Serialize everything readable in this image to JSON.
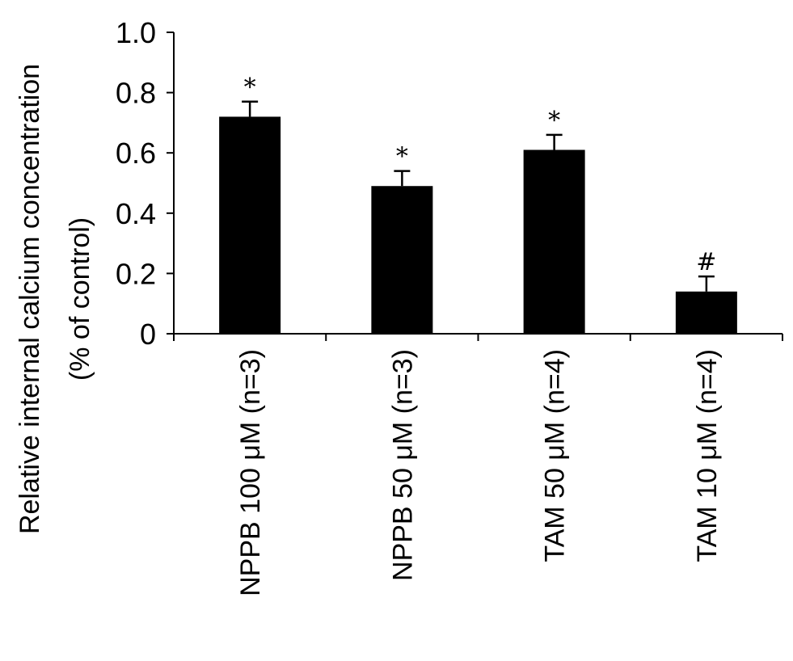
{
  "chart_data": {
    "type": "bar",
    "title": "",
    "ylabel_lines": [
      "Relative internal calcium concentration",
      "(% of control)"
    ],
    "xlabel": "",
    "categories": [
      "NPPB 100 μM (n=3)",
      "NPPB 50 μM (n=3)",
      "TAM 50 μM (n=4)",
      "TAM 10 μM (n=4)"
    ],
    "values": [
      0.72,
      0.49,
      0.61,
      0.14
    ],
    "error": [
      0.05,
      0.05,
      0.05,
      0.05
    ],
    "annotations": [
      "*",
      "*",
      "*",
      "#"
    ],
    "ylim": [
      0,
      1.0
    ],
    "yticks": [
      0,
      0.2,
      0.4,
      0.6,
      0.8,
      1.0
    ],
    "ytick_labels": [
      "0",
      "0.2",
      "0.4",
      "0.6",
      "0.8",
      "1.0"
    ],
    "bar_color": "#000000",
    "grid": false,
    "legend": "none"
  }
}
